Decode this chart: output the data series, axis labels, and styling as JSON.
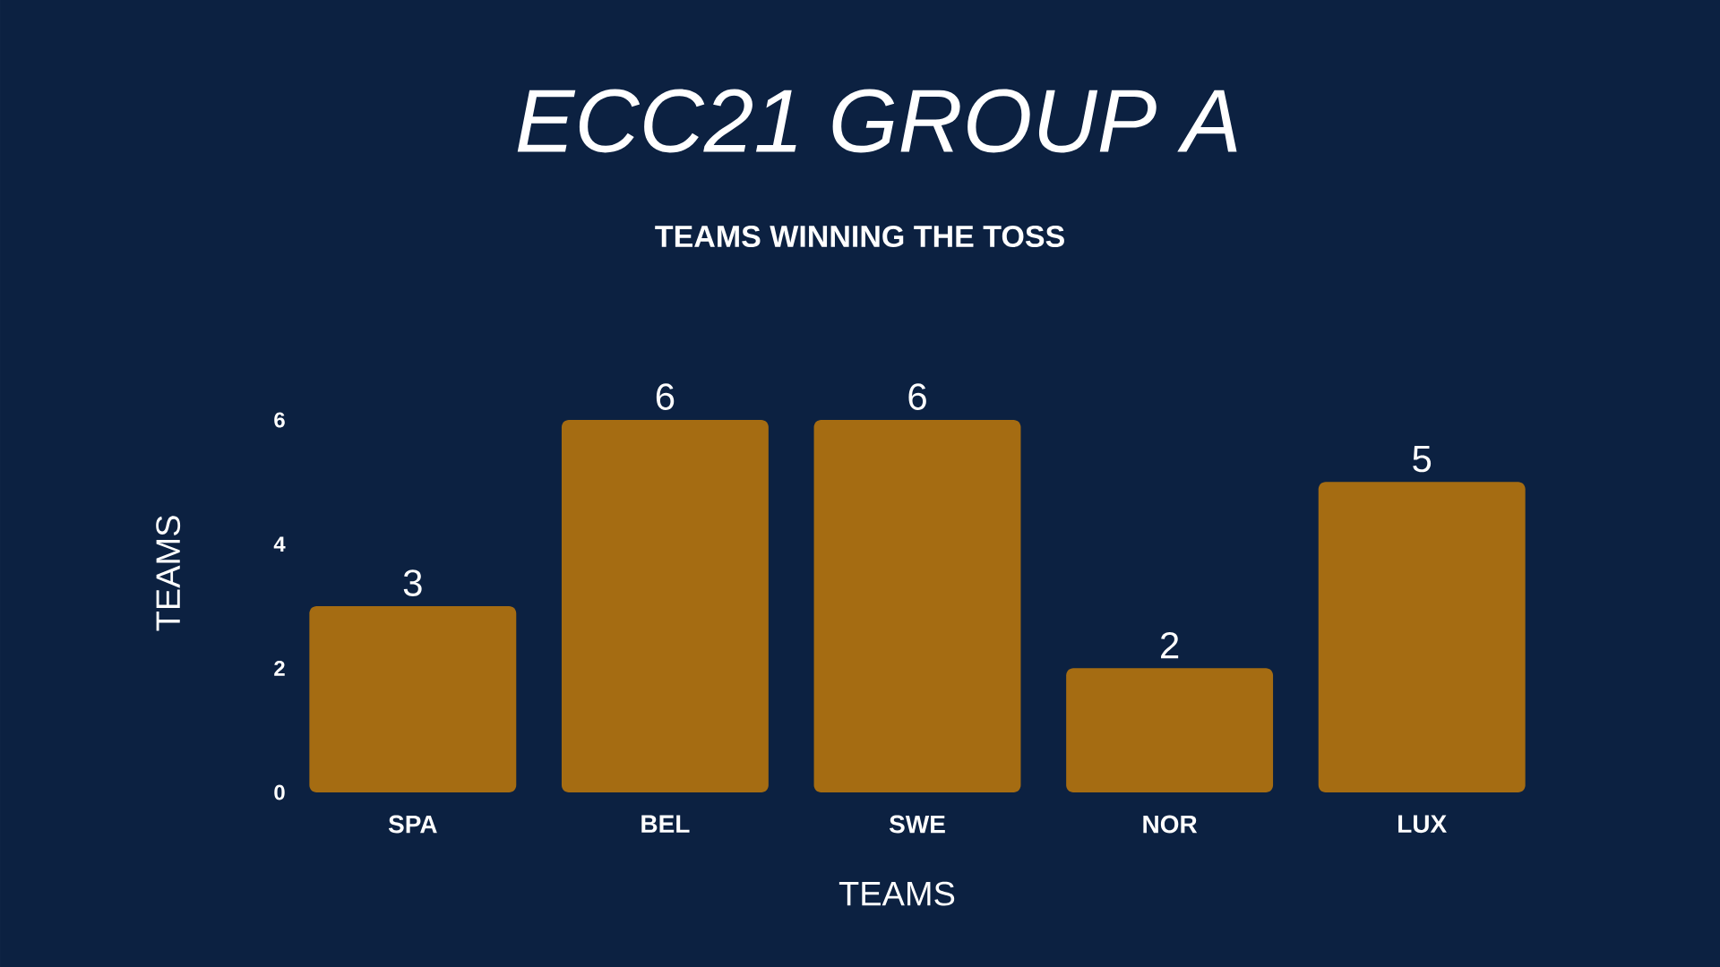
{
  "chart_data": {
    "type": "bar",
    "title": "ECC21 GROUP A",
    "subtitle": "TEAMS WINNING THE TOSS",
    "xlabel": "TEAMS",
    "ylabel": "TEAMS",
    "categories": [
      "SPA",
      "BEL",
      "SWE",
      "NOR",
      "LUX"
    ],
    "values": [
      3,
      6,
      6,
      2,
      5
    ],
    "color": "#a56c12",
    "ylim": [
      0,
      6
    ],
    "yticks": [
      0,
      2,
      4,
      6
    ],
    "data_labels": true
  }
}
